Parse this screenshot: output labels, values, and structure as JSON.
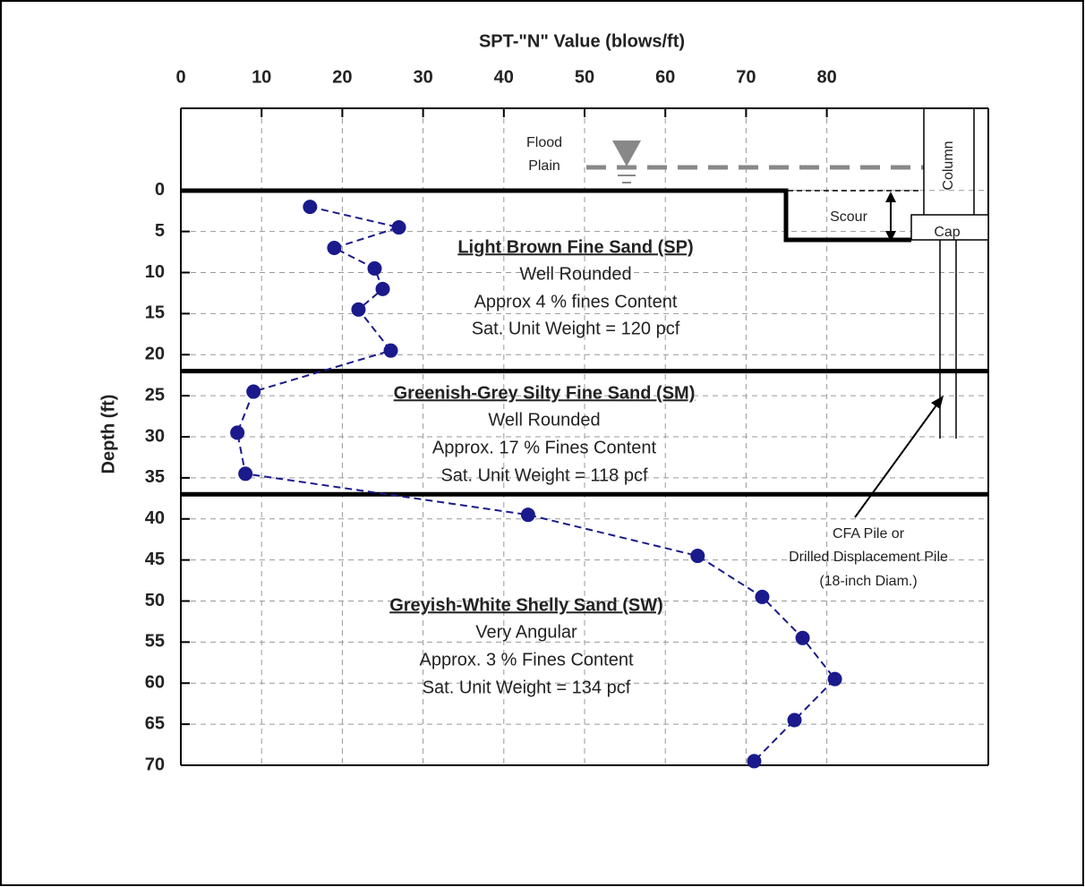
{
  "chart_data": {
    "type": "line",
    "title": "SPT-\"N\" Value (blows/ft)",
    "y_label": "Depth (ft)",
    "x": [
      16,
      27,
      19,
      24,
      25,
      22,
      26,
      9,
      7,
      8,
      43,
      64,
      72,
      77,
      81,
      76,
      71
    ],
    "series": [
      {
        "color": "#1a1a8c",
        "values": [
          2,
          4.5,
          7,
          9.5,
          12,
          14.5,
          19.5,
          24.5,
          29.5,
          34.5,
          39.5,
          44.5,
          49.5,
          54.5,
          59.5,
          64.5,
          69.5
        ]
      }
    ],
    "xlim": [
      0,
      100
    ],
    "xticks": [
      0,
      10,
      20,
      30,
      40,
      50,
      60,
      70,
      80
    ],
    "ylim": [
      -10,
      70
    ],
    "yticks": [
      0,
      5,
      10,
      15,
      20,
      25,
      30,
      35,
      40,
      45,
      50,
      55,
      60,
      65,
      70
    ],
    "grid": true,
    "layer_boundaries": [
      22,
      37
    ],
    "annotations": {
      "layer1": [
        "Light Brown Fine Sand (SP)",
        "Well Rounded",
        "Approx 4 % fines Content",
        "Sat. Unit Weight = 120 pcf"
      ],
      "layer2": [
        "Greenish-Grey Silty Fine Sand (SM)",
        "Well Rounded",
        "Approx. 17 % Fines Content",
        "Sat. Unit Weight = 118 pcf"
      ],
      "layer3": [
        "Greyish-White Shelly Sand (SW)",
        "Very Angular",
        "Approx. 3 % Fines Content",
        "Sat. Unit Weight = 134 pcf"
      ],
      "flood": [
        "Flood",
        "Plain"
      ],
      "scour": "Scour",
      "cap": "Cap",
      "column": "Column",
      "pile": [
        "CFA Pile or",
        "Drilled Displacement Pile",
        "(18-inch Diam.)"
      ]
    }
  }
}
